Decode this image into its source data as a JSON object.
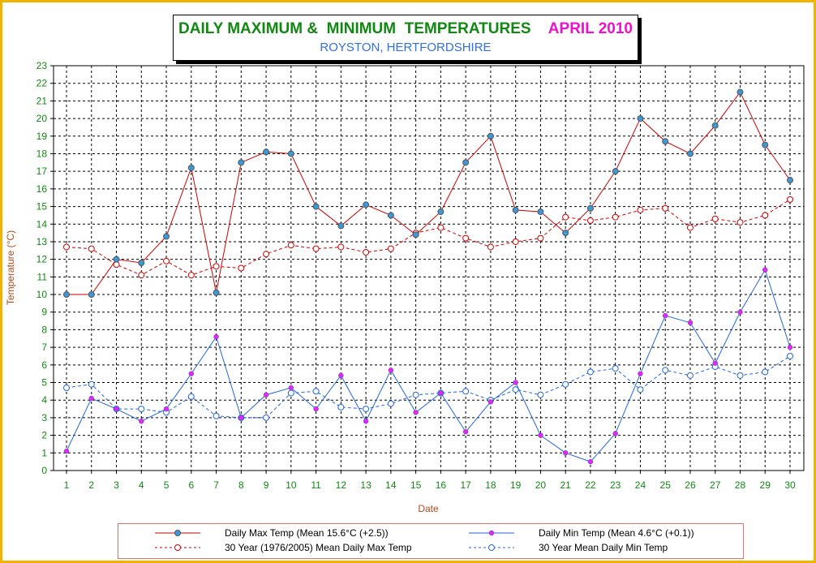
{
  "title": {
    "main": "DAILY MAXIMUM &  MINIMUM  TEMPERATURES",
    "month": "APRIL 2010",
    "subtitle": "ROYSTON, HERTFORDSHIRE"
  },
  "chart_data": {
    "type": "line",
    "xlabel": "Date",
    "ylabel": "Temperature (°C)",
    "x": [
      1,
      2,
      3,
      4,
      5,
      6,
      7,
      8,
      9,
      10,
      11,
      12,
      13,
      14,
      15,
      16,
      17,
      18,
      19,
      20,
      21,
      22,
      23,
      24,
      25,
      26,
      27,
      28,
      29,
      30
    ],
    "ylim": [
      0,
      23
    ],
    "yticks": [
      0,
      1,
      2,
      3,
      4,
      5,
      6,
      7,
      8,
      9,
      10,
      11,
      12,
      13,
      14,
      15,
      16,
      17,
      18,
      19,
      20,
      21,
      22,
      23
    ],
    "grid": true,
    "legend_position": "bottom",
    "series": [
      {
        "name": "Daily Max Temp (Mean 15.6°C (+2.5))",
        "color": "#cc0000",
        "marker_fill": "#3a9ad9",
        "dashed": false,
        "values": [
          10.0,
          10.0,
          12.0,
          11.8,
          13.3,
          17.2,
          10.1,
          17.5,
          18.1,
          18.0,
          15.0,
          13.9,
          15.1,
          14.5,
          13.4,
          14.7,
          17.5,
          19.0,
          14.8,
          14.7,
          13.5,
          14.9,
          17.0,
          20.0,
          18.7,
          18.0,
          19.6,
          21.5,
          18.5,
          16.5
        ]
      },
      {
        "name": "30 Year (1976/2005) Mean  Daily Max Temp",
        "color": "#cc0000",
        "marker_fill": "none",
        "dashed": true,
        "values": [
          12.7,
          12.6,
          11.7,
          11.1,
          11.9,
          11.1,
          11.6,
          11.5,
          12.3,
          12.8,
          12.6,
          12.7,
          12.4,
          12.6,
          13.5,
          13.8,
          13.2,
          12.7,
          13.0,
          13.2,
          14.4,
          14.2,
          14.4,
          14.8,
          14.9,
          13.8,
          14.3,
          14.1,
          14.5,
          15.4
        ]
      },
      {
        "name": "Daily Min Temp (Mean 4.6°C (+0.1))",
        "color": "#2266dd",
        "marker_fill": "#ee22ee",
        "dashed": false,
        "values": [
          1.1,
          4.1,
          3.5,
          2.8,
          3.5,
          5.5,
          7.6,
          3.0,
          4.3,
          4.7,
          3.5,
          5.4,
          2.8,
          5.7,
          3.3,
          4.4,
          2.2,
          3.9,
          5.0,
          2.0,
          1.0,
          0.5,
          2.1,
          5.5,
          8.8,
          8.4,
          6.1,
          9.0,
          11.4,
          7.0
        ]
      },
      {
        "name": "30 Year Mean Daily Min Temp",
        "color": "#2266dd",
        "marker_fill": "none",
        "dashed": true,
        "values": [
          4.7,
          4.9,
          3.5,
          3.5,
          3.3,
          4.2,
          3.1,
          3.0,
          3.0,
          4.4,
          4.5,
          3.6,
          3.5,
          3.8,
          4.3,
          4.4,
          4.5,
          4.0,
          4.6,
          4.3,
          4.9,
          5.6,
          5.8,
          4.6,
          5.7,
          5.4,
          5.9,
          5.4,
          5.6,
          6.5
        ]
      }
    ]
  }
}
